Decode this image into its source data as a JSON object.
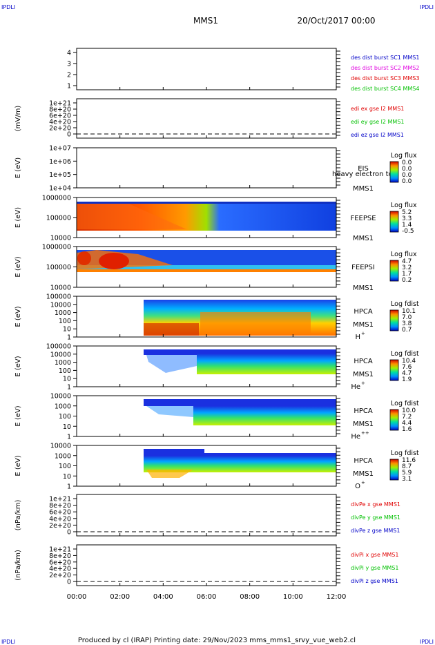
{
  "header": {
    "corner_label": "IPDLI",
    "spacecraft": "MMS1",
    "date": "20/Oct/2017 00:00"
  },
  "footer": {
    "text": "Produced by cl (IRAP)   Printing date: 29/Nov/2023   mms_mms1_srvy_vue_web2.cl"
  },
  "colors": {
    "blue": "#0000c8",
    "magenta": "#e000e0",
    "red": "#e00000",
    "green": "#00c000"
  },
  "chart_data": {
    "type": "heatmap",
    "x_ticks": [
      "00:00",
      "02:00",
      "04:00",
      "06:00",
      "08:00",
      "10:00",
      "12:00"
    ],
    "panels": [
      {
        "name": "dist",
        "kind": "line",
        "ylabel": "",
        "y_ticks": [
          "4",
          "3",
          "2",
          "1"
        ],
        "legend": [
          {
            "text": "des dist burst SC1 MMS1",
            "color": "#0000c8"
          },
          {
            "text": "des dist burst SC2 MMS2",
            "color": "#e000e0"
          },
          {
            "text": "des dist burst SC3 MMS3",
            "color": "#e00000"
          },
          {
            "text": "des dist burst SC4 MMS4",
            "color": "#00c000"
          }
        ]
      },
      {
        "name": "edi",
        "kind": "line",
        "ylabel": "(mV/m)",
        "y_ticks": [
          "1e+21",
          "8e+20",
          "6e+20",
          "4e+20",
          "2e+20",
          "0"
        ],
        "legend": [
          {
            "text": "edi ex gse l2 MMS1",
            "color": "#e00000"
          },
          {
            "text": "edi ey gse l2 MMS1",
            "color": "#00c000"
          },
          {
            "text": "edi ez gse l2 MMS1",
            "color": "#0000c8"
          }
        ]
      },
      {
        "name": "eis",
        "kind": "spectro",
        "ylabel": "E (eV)",
        "y_ticks": [
          "1e+07",
          "1e+06",
          "1e+05",
          "1e+04"
        ],
        "labels": [
          "EIS",
          "MMS1"
        ],
        "overlay": "heavy electron to",
        "cbar_title": "Log flux",
        "cbar_ticks": [
          "0.0",
          "0.0",
          "0.0",
          "0.0"
        ]
      },
      {
        "name": "feeps_e",
        "kind": "spectro",
        "ylabel": "E (eV)",
        "y_ticks": [
          "1000000",
          "100000",
          "10000"
        ],
        "labels": [
          "FEEPSE",
          "MMS1"
        ],
        "cbar_title": "Log flux",
        "cbar_ticks": [
          "5.2",
          "3.3",
          "1.4",
          "-0.5"
        ]
      },
      {
        "name": "feeps_i",
        "kind": "spectro",
        "ylabel": "E (eV)",
        "y_ticks": [
          "1000000",
          "100000",
          "10000"
        ],
        "labels": [
          "FEEPSI",
          "MMS1"
        ],
        "cbar_title": "Log flux",
        "cbar_ticks": [
          "4.7",
          "3.2",
          "1.7",
          "0.2"
        ]
      },
      {
        "name": "hpca_h",
        "kind": "spectro",
        "ylabel": "E (eV)",
        "y_ticks": [
          "100000",
          "10000",
          "1000",
          "100",
          "10",
          "1"
        ],
        "labels": [
          "HPCA",
          "MMS1"
        ],
        "species": "H",
        "species_sup": "+",
        "cbar_title": "Log fdist",
        "cbar_ticks": [
          "10.1",
          "7.0",
          "3.8",
          "0.7"
        ]
      },
      {
        "name": "hpca_he",
        "kind": "spectro",
        "ylabel": "E (eV)",
        "y_ticks": [
          "100000",
          "10000",
          "1000",
          "100",
          "10",
          "1"
        ],
        "labels": [
          "HPCA",
          "MMS1"
        ],
        "species": "He",
        "species_sup": "+",
        "cbar_title": "Log fdist",
        "cbar_ticks": [
          "10.4",
          "7.6",
          "4.7",
          "1.9"
        ]
      },
      {
        "name": "hpca_hepp",
        "kind": "spectro",
        "ylabel": "E (eV)",
        "y_ticks": [
          "10000",
          "1000",
          "100",
          "10",
          "1"
        ],
        "labels": [
          "HPCA",
          "MMS1"
        ],
        "species": "He",
        "species_sup": "++",
        "cbar_title": "Log fdist",
        "cbar_ticks": [
          "10.0",
          "7.2",
          "4.4",
          "1.6"
        ]
      },
      {
        "name": "hpca_o",
        "kind": "spectro",
        "ylabel": "E (eV)",
        "y_ticks": [
          "10000",
          "1000",
          "100",
          "10",
          "1"
        ],
        "labels": [
          "HPCA",
          "MMS1"
        ],
        "species": "O",
        "species_sup": "+",
        "cbar_title": "Log fdist",
        "cbar_ticks": [
          "11.6",
          "8.7",
          "5.9",
          "3.1"
        ]
      },
      {
        "name": "divpe",
        "kind": "line",
        "ylabel": "(nPa/km)",
        "y_ticks": [
          "1e+21",
          "8e+20",
          "6e+20",
          "4e+20",
          "2e+20",
          "0"
        ],
        "legend": [
          {
            "text": "divPe x gse MMS1",
            "color": "#e00000"
          },
          {
            "text": "divPe y gse MMS1",
            "color": "#00c000"
          },
          {
            "text": "divPe z gse MMS1",
            "color": "#0000c8"
          }
        ]
      },
      {
        "name": "divpi",
        "kind": "line",
        "ylabel": "(nPa/km)",
        "y_ticks": [
          "1e+21",
          "8e+20",
          "6e+20",
          "4e+20",
          "2e+20",
          "0"
        ],
        "legend": [
          {
            "text": "divPi x gse MMS1",
            "color": "#e00000"
          },
          {
            "text": "divPi y gse MMS1",
            "color": "#00c000"
          },
          {
            "text": "divPi z gse MMS1",
            "color": "#0000c8"
          }
        ]
      }
    ]
  }
}
